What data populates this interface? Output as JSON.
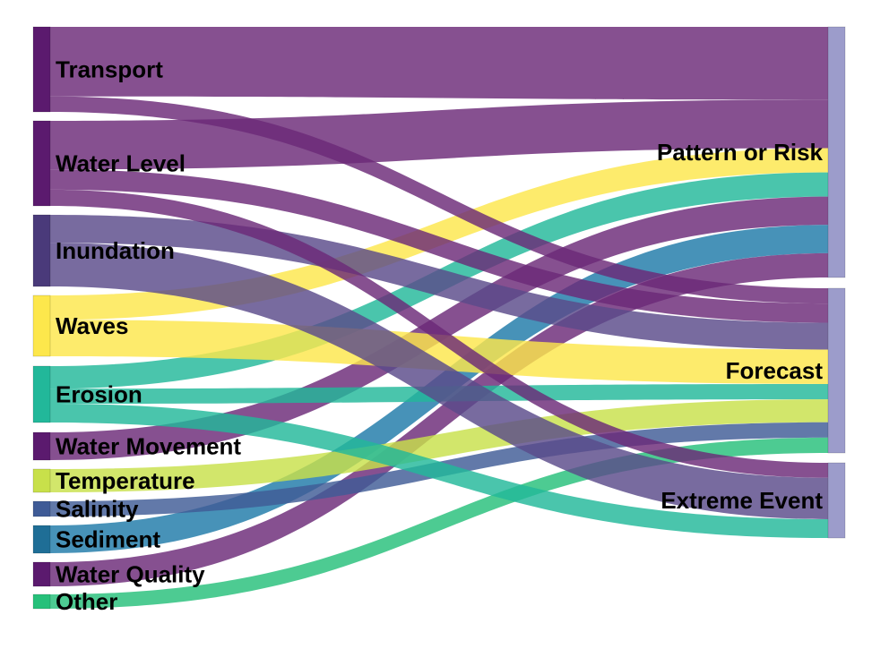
{
  "diagram": {
    "type": "sankey",
    "sources": [
      {
        "id": "transport",
        "label": "Transport",
        "color": "#5b1a6e"
      },
      {
        "id": "water_level",
        "label": "Water Level",
        "color": "#5b1a6e"
      },
      {
        "id": "inundation",
        "label": "Inundation",
        "color": "#4a3a7a"
      },
      {
        "id": "waves",
        "label": "Waves",
        "color": "#fde74c"
      },
      {
        "id": "erosion",
        "label": "Erosion",
        "color": "#22b89a"
      },
      {
        "id": "water_movement",
        "label": "Water Movement",
        "color": "#5b1a6e"
      },
      {
        "id": "temperature",
        "label": "Temperature",
        "color": "#c8e04a"
      },
      {
        "id": "salinity",
        "label": "Salinity",
        "color": "#3f5b96"
      },
      {
        "id": "sediment",
        "label": "Sediment",
        "color": "#1f6e96"
      },
      {
        "id": "water_quality",
        "label": "Water Quality",
        "color": "#5b1a6e"
      },
      {
        "id": "other",
        "label": "Other",
        "color": "#26c07a"
      }
    ],
    "targets": [
      {
        "id": "pattern",
        "label": "Pattern or Risk",
        "color": "#9c9ccb"
      },
      {
        "id": "forecast",
        "label": "Forecast",
        "color": "#9c9ccb"
      },
      {
        "id": "extreme",
        "label": "Extreme Event",
        "color": "#9c9ccb"
      }
    ],
    "links": [
      {
        "source": "transport",
        "target": "pattern",
        "value": 9,
        "color": "#6b2a78"
      },
      {
        "source": "water_level",
        "target": "pattern",
        "value": 6,
        "color": "#6b2a78"
      },
      {
        "source": "waves",
        "target": "pattern",
        "value": 3,
        "color": "#fde74c"
      },
      {
        "source": "erosion",
        "target": "pattern",
        "value": 3,
        "color": "#22b89a"
      },
      {
        "source": "water_movement",
        "target": "pattern",
        "value": 3.5,
        "color": "#6b2a78"
      },
      {
        "source": "sediment",
        "target": "pattern",
        "value": 3.5,
        "color": "#1f7aa8"
      },
      {
        "source": "water_quality",
        "target": "pattern",
        "value": 3,
        "color": "#6b2a78"
      },
      {
        "source": "transport",
        "target": "forecast",
        "value": 2,
        "color": "#6b2a78"
      },
      {
        "source": "water_level",
        "target": "forecast",
        "value": 2.5,
        "color": "#6b2a78"
      },
      {
        "source": "inundation",
        "target": "forecast",
        "value": 3.5,
        "color": "#5a4a8a"
      },
      {
        "source": "waves",
        "target": "forecast",
        "value": 4.5,
        "color": "#fde74c"
      },
      {
        "source": "erosion",
        "target": "forecast",
        "value": 2,
        "color": "#22b89a"
      },
      {
        "source": "temperature",
        "target": "forecast",
        "value": 3,
        "color": "#c8e04a"
      },
      {
        "source": "salinity",
        "target": "forecast",
        "value": 2,
        "color": "#3f5b96"
      },
      {
        "source": "other",
        "target": "forecast",
        "value": 2,
        "color": "#26c07a"
      },
      {
        "source": "water_level",
        "target": "extreme",
        "value": 2,
        "color": "#6b2a78"
      },
      {
        "source": "inundation",
        "target": "extreme",
        "value": 5.5,
        "color": "#5a4a8a"
      },
      {
        "source": "erosion",
        "target": "extreme",
        "value": 2.5,
        "color": "#22b89a"
      }
    ]
  }
}
